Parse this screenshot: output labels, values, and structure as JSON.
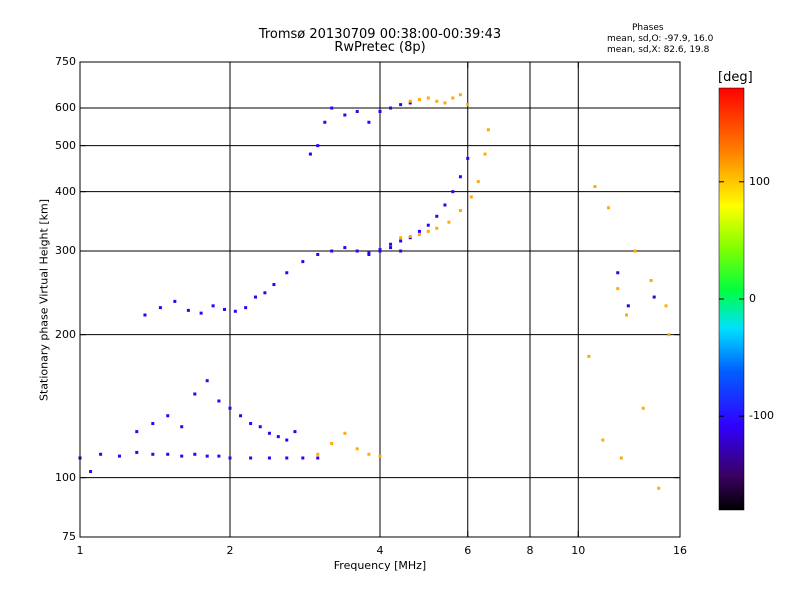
{
  "header": {
    "title_line1": "Tromsø 20130709 00:38:00-00:39:43",
    "title_line2": "RwPretec (8p)",
    "phases_title": "Phases",
    "phases_o": "mean, sd,O: -97.9, 16.0",
    "phases_x": "mean, sd,X:  82.6, 19.8"
  },
  "colorbar": {
    "unit": "[deg]",
    "ticks": [
      {
        "label": "100",
        "value": 100
      },
      {
        "label": "0",
        "value": 0
      },
      {
        "label": "-100",
        "value": -100
      }
    ],
    "range": [
      -180,
      180
    ]
  },
  "chart_data": {
    "type": "scatter",
    "title": "Tromsø 20130709 00:38:00-00:39:43",
    "subtitle": "RwPretec (8p)",
    "xlabel": "Frequency [MHz]",
    "ylabel": "Stationary phase Virtual Height [km]",
    "xscale": "log",
    "yscale": "log",
    "xlim": [
      1,
      16
    ],
    "ylim": [
      75,
      750
    ],
    "xticks": [
      {
        "label": "1",
        "value": 1
      },
      {
        "label": "2",
        "value": 2
      },
      {
        "label": "4",
        "value": 4
      },
      {
        "label": "6",
        "value": 6
      },
      {
        "label": "8",
        "value": 8
      },
      {
        "label": "10",
        "value": 10
      },
      {
        "label": "16",
        "value": 16
      }
    ],
    "yticks": [
      {
        "label": "750",
        "value": 750
      },
      {
        "label": "600",
        "value": 600
      },
      {
        "label": "500",
        "value": 500
      },
      {
        "label": "400",
        "value": 400
      },
      {
        "label": "300",
        "value": 300
      },
      {
        "label": "200",
        "value": 200
      },
      {
        "label": "100",
        "value": 100
      },
      {
        "label": "75",
        "value": 75
      }
    ],
    "grid_x": [
      2,
      4,
      6,
      8,
      10
    ],
    "grid_y": [
      100,
      200,
      300,
      400,
      500,
      600
    ],
    "color_by": "phase [deg]",
    "series": [
      {
        "x": [
          1.0,
          1.05,
          1.1,
          1.2,
          1.3,
          1.4,
          1.5,
          1.6,
          1.7,
          1.8,
          1.9,
          2.0,
          2.2,
          2.4,
          2.6,
          2.8,
          3.0
        ],
        "y": [
          110,
          103,
          112,
          111,
          113,
          112,
          112,
          111,
          112,
          111,
          111,
          110,
          110,
          110,
          110,
          110,
          110
        ],
        "phase": -110
      },
      {
        "x": [
          1.3,
          1.4,
          1.5,
          1.6,
          1.7,
          1.8,
          1.9,
          2.0,
          2.1,
          2.2,
          2.3,
          2.4,
          2.5,
          2.6,
          2.7
        ],
        "y": [
          125,
          130,
          135,
          128,
          150,
          160,
          145,
          140,
          135,
          130,
          128,
          124,
          122,
          120,
          125
        ],
        "phase": -110
      },
      {
        "x": [
          3.0,
          3.2,
          3.4,
          3.6,
          3.8,
          4.0
        ],
        "y": [
          112,
          118,
          124,
          115,
          112,
          111
        ],
        "phase": 110
      },
      {
        "x": [
          1.35,
          1.45,
          1.55,
          1.65,
          1.75,
          1.85,
          1.95,
          2.05,
          2.15,
          2.25,
          2.35,
          2.45
        ],
        "y": [
          220,
          228,
          235,
          225,
          222,
          230,
          226,
          224,
          228,
          240,
          245,
          255
        ],
        "phase": -110
      },
      {
        "x": [
          2.6,
          2.8,
          3.0,
          3.2,
          3.4,
          3.6,
          3.8,
          4.0,
          4.2,
          4.4
        ],
        "y": [
          270,
          285,
          295,
          300,
          305,
          300,
          298,
          302,
          305,
          300
        ],
        "phase": -110
      },
      {
        "x": [
          3.8,
          4.0,
          4.2,
          4.4,
          4.6,
          4.8,
          5.0,
          5.2,
          5.4,
          5.6,
          5.8,
          6.0
        ],
        "y": [
          295,
          300,
          310,
          315,
          320,
          330,
          340,
          355,
          375,
          400,
          430,
          470
        ],
        "phase": -110
      },
      {
        "x": [
          4.4,
          4.6,
          4.8,
          5.0,
          5.2,
          5.5,
          5.8,
          6.1,
          6.3,
          6.5,
          6.6
        ],
        "y": [
          320,
          322,
          325,
          330,
          335,
          345,
          365,
          390,
          420,
          480,
          540
        ],
        "phase": 110
      },
      {
        "x": [
          2.9,
          3.0,
          3.1,
          3.2,
          3.4,
          3.6,
          3.8,
          4.0,
          4.2,
          4.4,
          4.6
        ],
        "y": [
          480,
          500,
          560,
          600,
          580,
          590,
          560,
          590,
          600,
          610,
          615
        ],
        "phase": -110
      },
      {
        "x": [
          4.6,
          4.8,
          5.0,
          5.2,
          5.4,
          5.6,
          5.8,
          6.0
        ],
        "y": [
          620,
          625,
          630,
          620,
          615,
          630,
          640,
          610
        ],
        "phase": 110
      },
      {
        "x": [
          10.8,
          11.5,
          12.0,
          12.5,
          13.0,
          14.0,
          15.0
        ],
        "y": [
          410,
          370,
          250,
          220,
          300,
          260,
          230
        ],
        "phase": 110
      },
      {
        "x": [
          10.5,
          11.2,
          12.2,
          13.5,
          14.5,
          15.2
        ],
        "y": [
          180,
          120,
          110,
          140,
          95,
          200
        ],
        "phase": 110
      },
      {
        "x": [
          12.0,
          12.6,
          14.2
        ],
        "y": [
          270,
          230,
          240
        ],
        "phase": -120
      }
    ]
  }
}
